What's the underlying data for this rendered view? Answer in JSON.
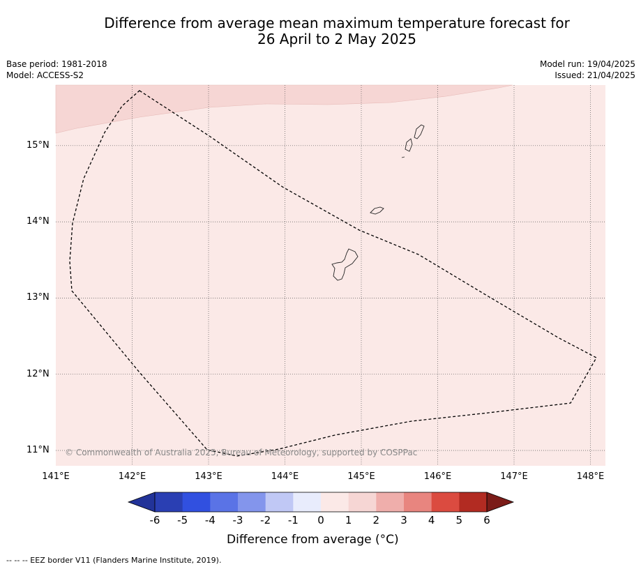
{
  "title": {
    "line1": "Difference from average mean maximum temperature forecast for",
    "line2": "26 April to 2 May 2025"
  },
  "meta_left": {
    "base_period": "Base period: 1981-2018",
    "model": "Model: ACCESS-S2"
  },
  "meta_right": {
    "model_run": "Model run: 19/04/2025",
    "issued": "Issued: 21/04/2025"
  },
  "map": {
    "lon_range": [
      141.0,
      148.2
    ],
    "lat_range": [
      10.8,
      15.8
    ],
    "lon_ticks": [
      141,
      142,
      143,
      144,
      145,
      146,
      147,
      148
    ],
    "lat_ticks": [
      11,
      12,
      13,
      14,
      15
    ],
    "lon_labels": [
      "141°E",
      "142°E",
      "143°E",
      "144°E",
      "145°E",
      "146°E",
      "147°E",
      "148°E"
    ],
    "lat_labels": [
      "11°N",
      "12°N",
      "13°N",
      "14°N",
      "15°N"
    ],
    "background_color": "#fbe9e7",
    "warm_band_color": "#f6d6d4",
    "grid": "on"
  },
  "colorbar": {
    "ticks": [
      "-6",
      "-5",
      "-4",
      "-3",
      "-2",
      "-1",
      "0",
      "1",
      "2",
      "3",
      "4",
      "5",
      "6"
    ],
    "colors": [
      "#223399",
      "#2a3fb3",
      "#3150e0",
      "#5a73e6",
      "#8395ec",
      "#c0c8f5",
      "#e8ecfc",
      "#fbe9e7",
      "#f6d6d4",
      "#efaeab",
      "#e8857f",
      "#db4b40",
      "#b22b22",
      "#7b1c18"
    ],
    "label": "Difference from average (°C)"
  },
  "copyright": "© Commonwealth of Australia 2025, Bureau of Meteorology, supported by COSPPac",
  "footnote": "--  --  -- EEZ border V11 (Flanders Marine Institute, 2019)."
}
